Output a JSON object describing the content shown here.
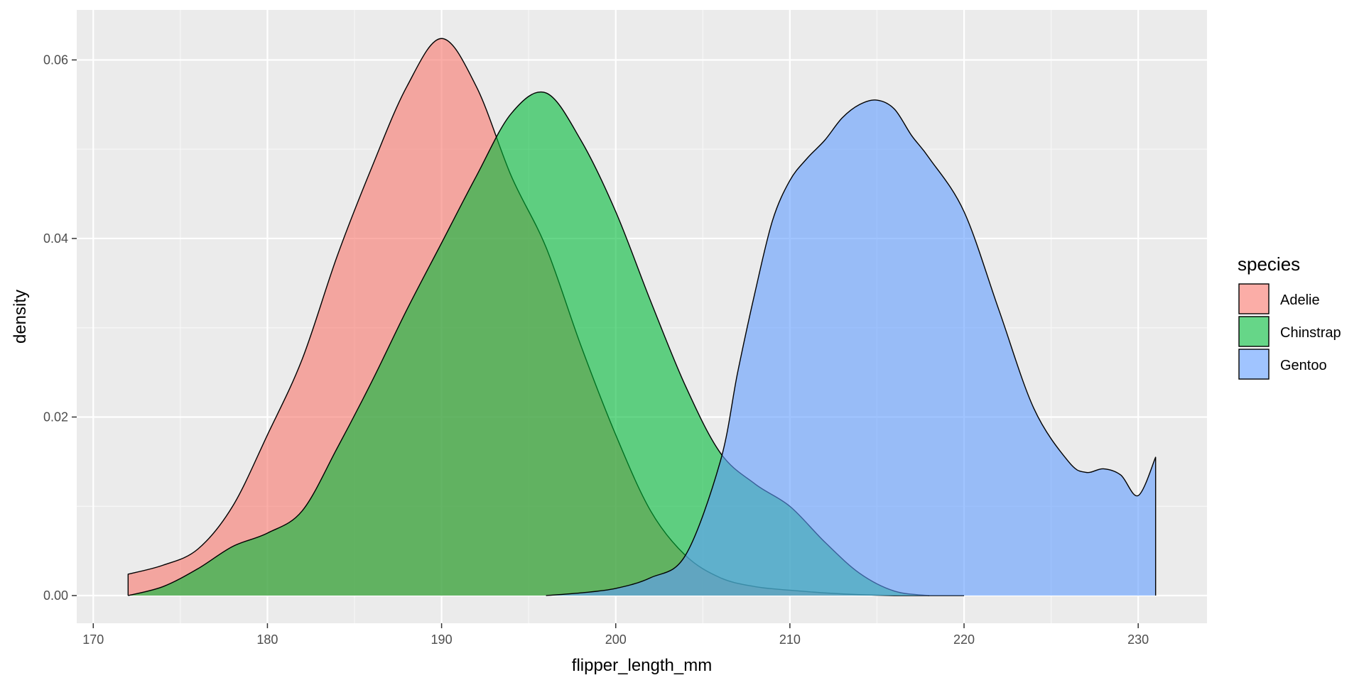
{
  "chart_data": {
    "type": "area",
    "subtype": "density",
    "title": "",
    "xlabel": "flipper_length_mm",
    "ylabel": "density",
    "xlim": [
      169.05,
      233.95
    ],
    "ylim": [
      -0.0031,
      0.0656
    ],
    "x_ticks": [
      170,
      180,
      190,
      200,
      210,
      220,
      230
    ],
    "x_tick_labels": [
      "170",
      "180",
      "190",
      "200",
      "210",
      "220",
      "230"
    ],
    "y_ticks": [
      0.0,
      0.02,
      0.04,
      0.06
    ],
    "y_tick_labels": [
      "0.00",
      "0.02",
      "0.04",
      "0.06"
    ],
    "grid": true,
    "fill_alpha": 0.6,
    "legend": {
      "title": "species",
      "position": "right"
    },
    "series": [
      {
        "name": "Adelie",
        "color": "#F8766D",
        "x": [
          172,
          174,
          176,
          178,
          180,
          182,
          184,
          186,
          188,
          190,
          192,
          194,
          196,
          198,
          200,
          202,
          204,
          206,
          208,
          210,
          212,
          214,
          216,
          218,
          220
        ],
        "y": [
          0.0024,
          0.0034,
          0.0052,
          0.01,
          0.018,
          0.0265,
          0.038,
          0.048,
          0.057,
          0.0624,
          0.057,
          0.047,
          0.039,
          0.028,
          0.018,
          0.0095,
          0.0045,
          0.002,
          0.001,
          0.0006,
          0.0003,
          0.0001,
          0.0,
          0.0,
          0.0
        ]
      },
      {
        "name": "Chinstrap",
        "color": "#00BA38",
        "x": [
          172,
          174,
          176,
          178,
          180,
          182,
          184,
          186,
          188,
          190,
          192,
          194,
          196,
          198,
          200,
          202,
          204,
          206,
          208,
          210,
          212,
          214,
          216,
          218
        ],
        "y": [
          0.0,
          0.001,
          0.003,
          0.0055,
          0.007,
          0.0095,
          0.0165,
          0.024,
          0.032,
          0.0395,
          0.047,
          0.054,
          0.0563,
          0.051,
          0.043,
          0.033,
          0.0235,
          0.016,
          0.0125,
          0.01,
          0.006,
          0.0025,
          0.0005,
          0.0
        ]
      },
      {
        "name": "Gentoo",
        "color": "#619CFF",
        "x": [
          196,
          198,
          200,
          202,
          204,
          206,
          207,
          208,
          209,
          210,
          211,
          212,
          213,
          214,
          215,
          216,
          217,
          218,
          220,
          222,
          224,
          226,
          227,
          228,
          229,
          230,
          231
        ],
        "y": [
          0.0,
          0.0003,
          0.0008,
          0.002,
          0.0045,
          0.015,
          0.025,
          0.034,
          0.042,
          0.0465,
          0.049,
          0.051,
          0.0535,
          0.055,
          0.0555,
          0.0545,
          0.0515,
          0.049,
          0.043,
          0.032,
          0.021,
          0.015,
          0.0138,
          0.0142,
          0.0135,
          0.0112,
          0.0155
        ]
      }
    ]
  }
}
